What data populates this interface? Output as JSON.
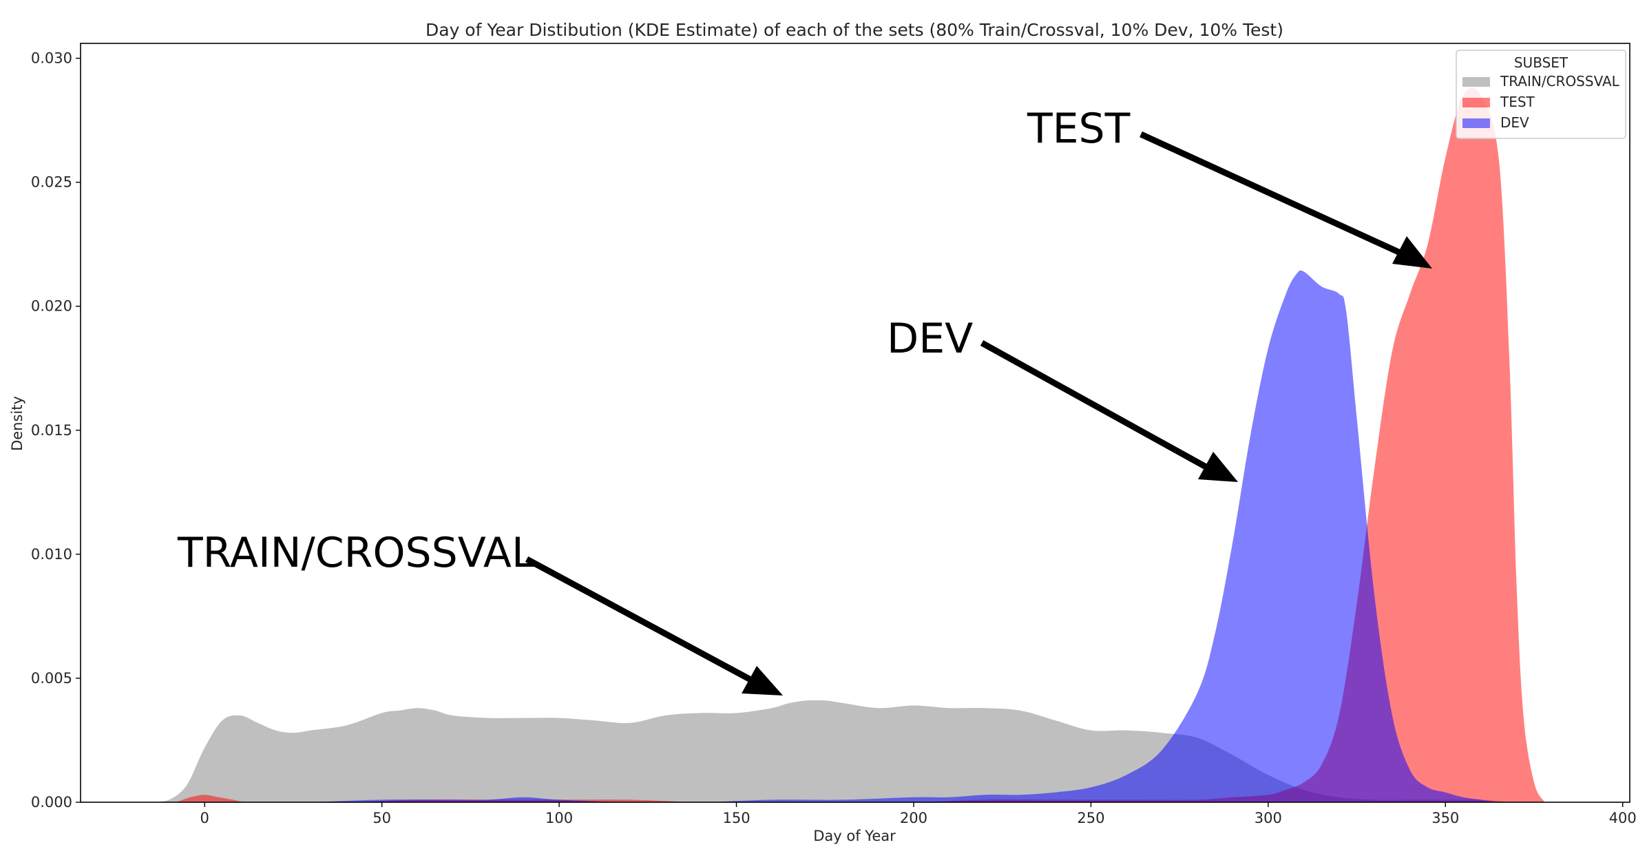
{
  "chart_data": {
    "type": "area",
    "title": "Day of Year Distibution (KDE Estimate) of each of the sets (80% Train/Crossval, 10% Dev, 10% Test)",
    "xlabel": "Day of Year",
    "ylabel": "Density",
    "xlim": [
      -35,
      402
    ],
    "ylim": [
      0,
      0.0306
    ],
    "x_ticks": [
      0,
      50,
      100,
      150,
      200,
      250,
      300,
      350,
      400
    ],
    "y_ticks": [
      0.0,
      0.005,
      0.01,
      0.015,
      0.02,
      0.025,
      0.03
    ],
    "x_tick_labels": [
      "0",
      "50",
      "100",
      "150",
      "200",
      "250",
      "300",
      "350",
      "400"
    ],
    "y_tick_labels": [
      "0.000",
      "0.005",
      "0.010",
      "0.015",
      "0.020",
      "0.025",
      "0.030"
    ],
    "grid": false,
    "legend": {
      "title": "SUBSET",
      "placement": "upper right",
      "entries": [
        "TRAIN/CROSSVAL",
        "TEST",
        "DEV"
      ]
    },
    "series": [
      {
        "name": "TRAIN/CROSSVAL",
        "color": "#808080",
        "x": [
          -15,
          -10,
          -5,
          0,
          5,
          10,
          15,
          20,
          25,
          30,
          40,
          50,
          55,
          60,
          65,
          70,
          80,
          90,
          100,
          110,
          120,
          130,
          140,
          150,
          160,
          165,
          170,
          175,
          180,
          190,
          200,
          210,
          220,
          230,
          240,
          250,
          260,
          270,
          280,
          290,
          300,
          310,
          320,
          330,
          340,
          350,
          360,
          370,
          378
        ],
        "y": [
          0,
          0.0001,
          0.0007,
          0.0022,
          0.0033,
          0.0035,
          0.0032,
          0.0029,
          0.0028,
          0.0029,
          0.0031,
          0.0036,
          0.0037,
          0.0038,
          0.0037,
          0.0035,
          0.0034,
          0.0034,
          0.0034,
          0.0033,
          0.0032,
          0.0035,
          0.0036,
          0.0036,
          0.0038,
          0.004,
          0.0041,
          0.0041,
          0.004,
          0.0038,
          0.0039,
          0.0038,
          0.0038,
          0.0037,
          0.0033,
          0.0029,
          0.0029,
          0.0028,
          0.0026,
          0.0019,
          0.0011,
          0.0005,
          0.0002,
          0.0001,
          0.0001,
          0.0001,
          0.0001,
          0.0,
          0
        ]
      },
      {
        "name": "TEST",
        "color": "#ff0000",
        "x": [
          -8,
          -4,
          0,
          4,
          8,
          12,
          20,
          40,
          60,
          80,
          100,
          120,
          140,
          160,
          180,
          200,
          220,
          240,
          260,
          280,
          290,
          300,
          305,
          310,
          315,
          320,
          325,
          330,
          335,
          340,
          345,
          350,
          355,
          360,
          365,
          368,
          370,
          372,
          375,
          378
        ],
        "y": [
          0,
          0.0002,
          0.0003,
          0.0002,
          0.0001,
          0.0,
          0.0,
          0.0,
          0.0001,
          0.0001,
          0.0001,
          0.0001,
          0.0,
          0.0,
          0.0,
          0.0,
          0.0001,
          0.0001,
          0.0001,
          0.0001,
          0.0002,
          0.0003,
          0.0005,
          0.0008,
          0.0015,
          0.0035,
          0.008,
          0.0135,
          0.0182,
          0.0205,
          0.0225,
          0.026,
          0.0285,
          0.0285,
          0.026,
          0.018,
          0.009,
          0.0035,
          0.0008,
          0
        ]
      },
      {
        "name": "DEV",
        "color": "#0000ff",
        "x": [
          30,
          50,
          70,
          80,
          90,
          100,
          120,
          140,
          160,
          180,
          200,
          210,
          220,
          230,
          240,
          250,
          260,
          270,
          280,
          285,
          290,
          295,
          300,
          305,
          308,
          310,
          315,
          320,
          322,
          325,
          330,
          335,
          340,
          345,
          350,
          355,
          360,
          365
        ],
        "y": [
          0,
          0.0001,
          0.0001,
          0.0001,
          0.0002,
          0.0001,
          0.0,
          0.0,
          0.0001,
          0.0001,
          0.0002,
          0.0002,
          0.0003,
          0.0003,
          0.0004,
          0.0006,
          0.0011,
          0.0021,
          0.0044,
          0.0068,
          0.0105,
          0.0148,
          0.0183,
          0.0205,
          0.0213,
          0.0214,
          0.0208,
          0.0205,
          0.0198,
          0.0155,
          0.0083,
          0.0035,
          0.0013,
          0.0006,
          0.0004,
          0.0002,
          0.0001,
          0
        ]
      }
    ],
    "annotations": [
      {
        "label": "TEST"
      },
      {
        "label": "DEV"
      },
      {
        "label": "TRAIN/CROSSVAL"
      }
    ]
  }
}
